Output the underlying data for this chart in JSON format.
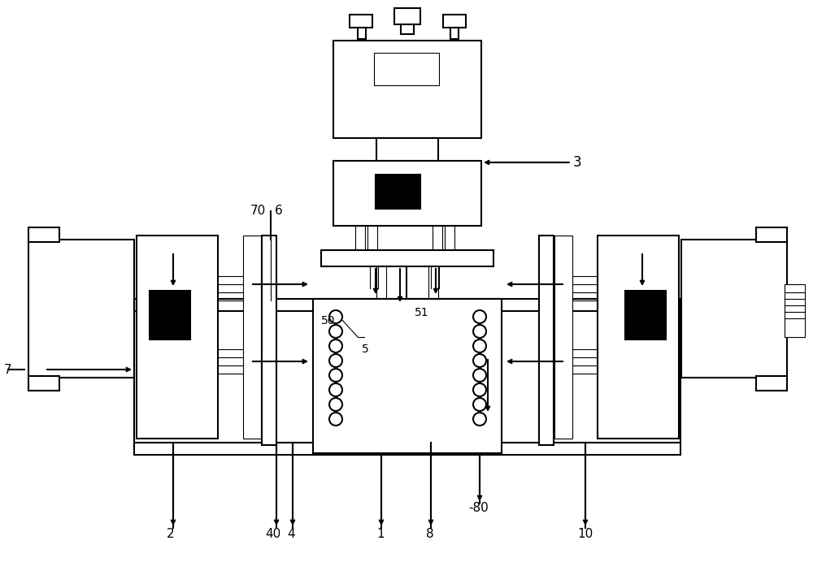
{
  "bg_color": "#ffffff",
  "line_color": "#000000",
  "lw": 1.5,
  "lw_thin": 0.8,
  "fig_width": 10.0,
  "fig_height": 7.24
}
